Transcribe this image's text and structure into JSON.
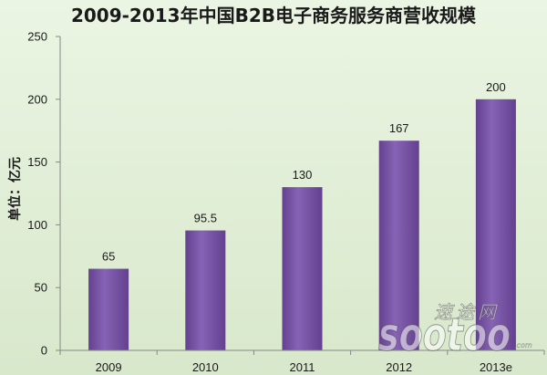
{
  "chart_data": {
    "type": "bar",
    "title": "2009-2013年中国B2B电子商务服务商营收规模",
    "ylabel": "单位：亿元",
    "categories": [
      "2009",
      "2010",
      "2011",
      "2012",
      "2013e"
    ],
    "values": [
      65,
      95.5,
      130,
      167,
      200
    ],
    "ylim": [
      0,
      250
    ],
    "yticks": [
      0,
      50,
      100,
      150,
      200,
      250
    ],
    "grid": false,
    "legend": false
  },
  "colors": {
    "background_top": "#ebf5e3",
    "background_bottom": "#d8e8cb",
    "bar_edge": "#64408f",
    "bar_center": "#8763b5",
    "axis": "#878787",
    "text": "#1a1a1a"
  },
  "watermark": {
    "cn": "速途网",
    "en": "sootoo",
    "suffix": ".com"
  }
}
